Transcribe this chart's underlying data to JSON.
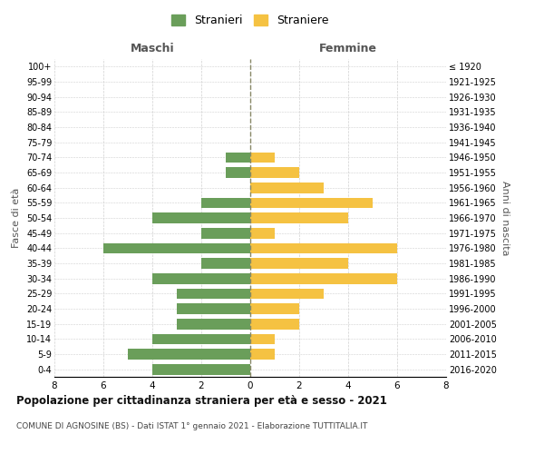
{
  "age_groups": [
    "0-4",
    "5-9",
    "10-14",
    "15-19",
    "20-24",
    "25-29",
    "30-34",
    "35-39",
    "40-44",
    "45-49",
    "50-54",
    "55-59",
    "60-64",
    "65-69",
    "70-74",
    "75-79",
    "80-84",
    "85-89",
    "90-94",
    "95-99",
    "100+"
  ],
  "birth_years": [
    "2016-2020",
    "2011-2015",
    "2006-2010",
    "2001-2005",
    "1996-2000",
    "1991-1995",
    "1986-1990",
    "1981-1985",
    "1976-1980",
    "1971-1975",
    "1966-1970",
    "1961-1965",
    "1956-1960",
    "1951-1955",
    "1946-1950",
    "1941-1945",
    "1936-1940",
    "1931-1935",
    "1926-1930",
    "1921-1925",
    "≤ 1920"
  ],
  "maschi": [
    4,
    5,
    4,
    3,
    3,
    3,
    4,
    2,
    6,
    2,
    4,
    2,
    0,
    1,
    1,
    0,
    0,
    0,
    0,
    0,
    0
  ],
  "femmine": [
    0,
    1,
    1,
    2,
    2,
    3,
    6,
    4,
    6,
    1,
    4,
    5,
    3,
    2,
    1,
    0,
    0,
    0,
    0,
    0,
    0
  ],
  "maschi_color": "#6a9e5a",
  "femmine_color": "#f5c242",
  "title": "Popolazione per cittadinanza straniera per età e sesso - 2021",
  "subtitle": "COMUNE DI AGNOSINE (BS) - Dati ISTAT 1° gennaio 2021 - Elaborazione TUTTITALIA.IT",
  "legend_maschi": "Stranieri",
  "legend_femmine": "Straniere",
  "xlabel_left": "Maschi",
  "xlabel_right": "Femmine",
  "ylabel_left": "Fasce di età",
  "ylabel_right": "Anni di nascita",
  "xlim": 8,
  "background_color": "#ffffff",
  "grid_color": "#d0d0d0"
}
